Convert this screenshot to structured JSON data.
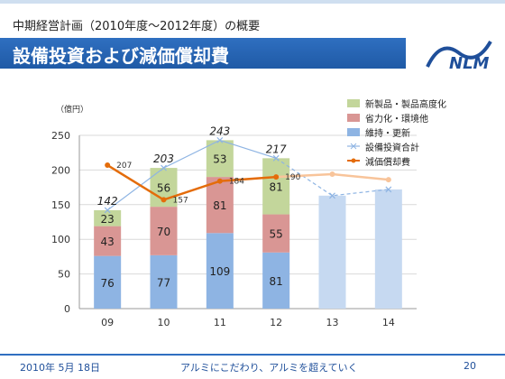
{
  "header": {
    "overview": "中期経営計画（2010年度～2012年度）の概要",
    "title": "設備投資および減価償却費",
    "logo_text": "NLM"
  },
  "footer": {
    "date": "2010年 5月 18日",
    "slogan": "アルミにこだわり、アルミを超えていく",
    "page": "20"
  },
  "colors": {
    "title_bar": "#2f6fc0",
    "maintenance": "#8eb4e3",
    "energy": "#d99694",
    "new_products": "#c3d69b",
    "plan": "#c6d9f1",
    "depreciation": "#e46c0a",
    "depreciation_plan": "#f8c49a",
    "investment_line": "#8eb4e3"
  },
  "chart_data": {
    "type": "bar",
    "unit_label": "（億円）",
    "categories": [
      "09",
      "10",
      "11",
      "12",
      "13",
      "14"
    ],
    "ylim": [
      0,
      250
    ],
    "yticks": [
      0,
      50,
      100,
      150,
      200,
      250
    ],
    "grid": true,
    "legend_position": "right",
    "series": [
      {
        "name": "維持・更新",
        "kind": "bar",
        "values": [
          76,
          77,
          109,
          81,
          null,
          null
        ]
      },
      {
        "name": "省力化・環境他",
        "kind": "bar",
        "values": [
          43,
          70,
          81,
          55,
          null,
          null
        ]
      },
      {
        "name": "新製品・製品高度化",
        "kind": "bar",
        "values": [
          23,
          56,
          53,
          81,
          null,
          null
        ]
      },
      {
        "name": "設備投資合計",
        "kind": "line",
        "values": [
          142,
          203,
          243,
          217,
          163,
          172
        ]
      },
      {
        "name": "減価償却費",
        "kind": "line",
        "values": [
          207,
          157,
          184,
          190,
          194,
          186
        ]
      }
    ],
    "plan_bars": {
      "13": 163,
      "14": 172
    },
    "total_labels": [
      "142",
      "203",
      "243",
      "217"
    ],
    "depreciation_labels": [
      "207",
      "157",
      "184",
      "190"
    ]
  }
}
